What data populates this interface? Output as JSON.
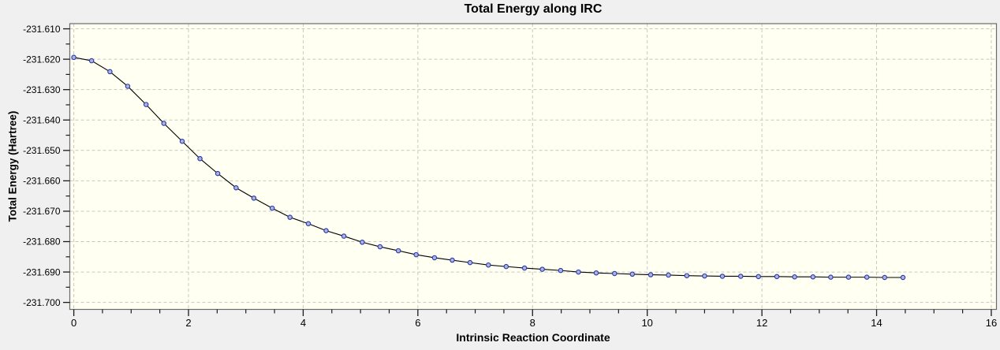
{
  "window": {
    "outer_bg": "#f0f0f0"
  },
  "chart_data": {
    "type": "line",
    "title": "Total Energy along IRC",
    "xlabel": "Intrinsic Reaction Coordinate",
    "ylabel": "Total Energy (Hartree)",
    "legend": "none",
    "grid": "dashed-on-major-ticks",
    "xlim": [
      -0.07,
      16.09
    ],
    "ylim": [
      -231.7023,
      -231.6083
    ],
    "x_major_ticks": [
      0,
      2,
      4,
      6,
      8,
      10,
      12,
      14,
      16
    ],
    "x_minor_tick_step": 0.5,
    "y_major_ticks": [
      -231.61,
      -231.62,
      -231.63,
      -231.64,
      -231.65,
      -231.66,
      -231.67,
      -231.68,
      -231.69,
      -231.7
    ],
    "y_minor_tick_step": 0.005,
    "y_tick_label_decimals": 3,
    "plot_bg": "#fffff2",
    "grid_color": "#c8c8c0",
    "frame_color": "#6b6b6b",
    "tick_color": "#1a1a1a",
    "text_color": "#000000",
    "series": [
      {
        "name": "Total Energy",
        "line_color": "#000000",
        "marker_shape": "circle",
        "marker_fill": "#aab5e4",
        "marker_stroke": "#2c38a2",
        "x": [
          0,
          0.31,
          0.63,
          0.94,
          1.26,
          1.57,
          1.89,
          2.2,
          2.51,
          2.83,
          3.14,
          3.46,
          3.77,
          4.09,
          4.4,
          4.71,
          5.03,
          5.34,
          5.66,
          5.97,
          6.29,
          6.6,
          6.91,
          7.23,
          7.54,
          7.86,
          8.17,
          8.49,
          8.8,
          9.11,
          9.43,
          9.74,
          10.06,
          10.37,
          10.69,
          11.0,
          11.31,
          11.63,
          11.94,
          12.26,
          12.57,
          12.89,
          13.2,
          13.51,
          13.83,
          14.14,
          14.46
        ],
        "y": [
          -231.6194,
          -231.6205,
          -231.6241,
          -231.6289,
          -231.6349,
          -231.6411,
          -231.647,
          -231.6527,
          -231.6576,
          -231.6623,
          -231.6657,
          -231.669,
          -231.672,
          -231.6741,
          -231.6764,
          -231.6782,
          -231.6802,
          -231.6817,
          -231.683,
          -231.6843,
          -231.6853,
          -231.6861,
          -231.6869,
          -231.6877,
          -231.6882,
          -231.6887,
          -231.6891,
          -231.6895,
          -231.69,
          -231.6903,
          -231.6905,
          -231.6907,
          -231.6909,
          -231.691,
          -231.6912,
          -231.6913,
          -231.6914,
          -231.6914,
          -231.6915,
          -231.6915,
          -231.6916,
          -231.6916,
          -231.6917,
          -231.6917,
          -231.6917,
          -231.6918,
          -231.6918
        ]
      }
    ]
  }
}
